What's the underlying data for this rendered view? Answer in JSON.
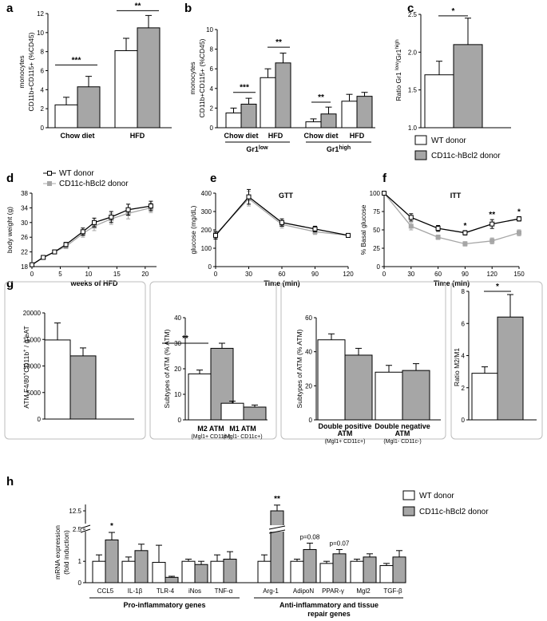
{
  "panel_labels": [
    "a",
    "b",
    "c",
    "d",
    "e",
    "f",
    "g",
    "h"
  ],
  "colors": {
    "wt": "#ffffff",
    "tg": "#a6a6a6",
    "tg_line": "#a6a6a6",
    "wt_line": "#000000",
    "edge": "#000000"
  },
  "legend": {
    "wt": "WT donor",
    "tg": "CD11c-hBcl2 donor"
  },
  "chart_data": [
    {
      "id": "a",
      "type": "bar",
      "ylabel": "monocytes CD11b+CD115+ (%CD45)",
      "ylim": [
        0,
        12
      ],
      "yticks": [
        0,
        2,
        4,
        6,
        8,
        10,
        12
      ],
      "categories": [
        "Chow diet",
        "HFD"
      ],
      "series": [
        {
          "name": "WT donor",
          "values": [
            2.4,
            8.1
          ],
          "err": [
            0.8,
            1.3
          ]
        },
        {
          "name": "CD11c-hBcl2 donor",
          "values": [
            4.3,
            10.5
          ],
          "err": [
            1.1,
            1.3
          ]
        }
      ],
      "sig": [
        {
          "cat": 0,
          "label": "***"
        },
        {
          "cat": 1,
          "label": "**"
        }
      ]
    },
    {
      "id": "b",
      "type": "bar",
      "ylabel": "monocytes CD11b+CD115+ (%CD45)",
      "ylim": [
        0,
        10
      ],
      "yticks": [
        0,
        2,
        4,
        6,
        8,
        10
      ],
      "categories": [
        "Chow diet",
        "HFD",
        "Chow diet",
        "HFD"
      ],
      "groups": [
        "Gr1low",
        "Gr1high"
      ],
      "series": [
        {
          "name": "WT donor",
          "values": [
            1.5,
            5.1,
            0.6,
            2.7
          ],
          "err": [
            0.5,
            0.9,
            0.3,
            0.7
          ]
        },
        {
          "name": "CD11c-hBcl2 donor",
          "values": [
            2.4,
            6.6,
            1.4,
            3.2
          ],
          "err": [
            0.6,
            1.0,
            0.7,
            0.4
          ]
        }
      ],
      "sig": [
        {
          "cat": 0,
          "label": "***"
        },
        {
          "cat": 1,
          "label": "**"
        },
        {
          "cat": 2,
          "label": "**"
        }
      ]
    },
    {
      "id": "c",
      "type": "bar",
      "ylabel": "Ratio Gr1 low/Gr1 high",
      "ylim": [
        1.0,
        2.5
      ],
      "yticks": [
        "1.0",
        "1.5",
        "2.0",
        "2.5"
      ],
      "series": [
        {
          "name": "WT donor",
          "values": [
            1.7
          ],
          "err": [
            0.18
          ]
        },
        {
          "name": "CD11c-hBcl2 donor",
          "values": [
            2.1
          ],
          "err": [
            0.35
          ]
        }
      ],
      "sig": [
        {
          "label": "*"
        }
      ]
    },
    {
      "id": "d",
      "type": "line",
      "ylabel": "body weight (g)",
      "xlabel": "weeks of HFD",
      "ylim": [
        18,
        38
      ],
      "yticks": [
        18,
        22,
        26,
        30,
        34,
        38
      ],
      "xlim": [
        0,
        22
      ],
      "xticks": [
        0,
        5,
        10,
        15,
        20
      ],
      "x": [
        0,
        2,
        4,
        6,
        9,
        11,
        14,
        17,
        21
      ],
      "series": [
        {
          "name": "WT donor",
          "values": [
            18.5,
            20.5,
            22,
            24,
            27.5,
            30,
            31.5,
            33.5,
            34.5
          ],
          "err": [
            0.4,
            0.5,
            0.5,
            0.6,
            1.0,
            1.2,
            1.5,
            1.5,
            1.3
          ]
        },
        {
          "name": "CD11c-hBcl2 donor",
          "values": [
            18.5,
            20.5,
            22,
            23.5,
            27,
            29,
            31,
            32.5,
            34
          ],
          "err": [
            0.4,
            0.5,
            0.5,
            0.6,
            1.0,
            1.2,
            1.5,
            1.5,
            1.3
          ]
        }
      ]
    },
    {
      "id": "e",
      "type": "line",
      "title": "GTT",
      "ylabel": "glucose (mg/dL)",
      "xlabel": "Time (min)",
      "ylim": [
        0,
        400
      ],
      "yticks": [
        0,
        100,
        200,
        300,
        400
      ],
      "xlim": [
        0,
        120
      ],
      "xticks": [
        0,
        30,
        60,
        90,
        120
      ],
      "x": [
        0,
        30,
        60,
        90,
        120
      ],
      "series": [
        {
          "name": "WT donor",
          "values": [
            170,
            380,
            240,
            205,
            170
          ],
          "err": [
            20,
            40,
            20,
            15,
            10
          ]
        },
        {
          "name": "CD11c-hBcl2 donor",
          "values": [
            175,
            370,
            230,
            190,
            170
          ],
          "err": [
            20,
            40,
            20,
            15,
            10
          ]
        }
      ]
    },
    {
      "id": "f",
      "type": "line",
      "title": "ITT",
      "ylabel": "% Basal glucose",
      "xlabel": "Time (min)",
      "ylim": [
        0,
        100
      ],
      "yticks": [
        0,
        25,
        50,
        75,
        100
      ],
      "xlim": [
        0,
        150
      ],
      "xticks": [
        0,
        30,
        60,
        90,
        120,
        150
      ],
      "x": [
        0,
        30,
        60,
        90,
        120,
        150
      ],
      "series": [
        {
          "name": "WT donor",
          "values": [
            100,
            67,
            52,
            46,
            58,
            65
          ],
          "err": [
            0,
            5,
            4,
            3,
            6,
            3
          ]
        },
        {
          "name": "CD11c-hBcl2 donor",
          "values": [
            100,
            55,
            40,
            31,
            35,
            46
          ],
          "err": [
            0,
            5,
            3,
            3,
            4,
            4
          ]
        }
      ],
      "sig": [
        {
          "x": 90,
          "label": "*"
        },
        {
          "x": 120,
          "label": "**"
        },
        {
          "x": 150,
          "label": "*"
        }
      ]
    },
    {
      "id": "g1",
      "type": "bar",
      "ylabel": "ATM  F4/80+CD11b+ / g eAT",
      "ylim": [
        0,
        20000
      ],
      "yticks": [
        0,
        5000,
        10000,
        15000,
        20000
      ],
      "series": [
        {
          "name": "WT donor",
          "values": [
            14900
          ],
          "err": [
            3200
          ]
        },
        {
          "name": "CD11c-hBcl2 donor",
          "values": [
            11900
          ],
          "err": [
            1500
          ]
        }
      ]
    },
    {
      "id": "g2",
      "type": "bar",
      "ylabel": "Subtypes of ATM  (% ATM)",
      "ylim": [
        0,
        40
      ],
      "yticks": [
        0,
        10,
        20,
        30,
        40
      ],
      "categories": [
        "M2 ATM",
        "M1 ATM"
      ],
      "subcategories": [
        "(Mgl1+ CD11c-)",
        "(Mgl1- CD11c+)"
      ],
      "series": [
        {
          "name": "WT donor",
          "values": [
            18,
            6.5
          ],
          "err": [
            1.5,
            0.8
          ]
        },
        {
          "name": "CD11c-hBcl2 donor",
          "values": [
            28,
            5
          ],
          "err": [
            2,
            0.8
          ]
        }
      ],
      "sig": [
        {
          "cat": 0,
          "label": "**"
        }
      ]
    },
    {
      "id": "g3",
      "type": "bar",
      "ylabel": "Subtypes of ATM  (% ATM)",
      "ylim": [
        0,
        60
      ],
      "yticks": [
        0,
        20,
        40,
        60
      ],
      "categories": [
        "Double positive ATM",
        "Double negative ATM"
      ],
      "subcategories": [
        "(Mgl1+ CD11c+)",
        "(Mgl1- CD11c-)"
      ],
      "series": [
        {
          "name": "WT donor",
          "values": [
            47,
            28
          ],
          "err": [
            3.5,
            4
          ]
        },
        {
          "name": "CD11c-hBcl2 donor",
          "values": [
            38,
            29
          ],
          "err": [
            4,
            4
          ]
        }
      ]
    },
    {
      "id": "g4",
      "type": "bar",
      "ylabel": "Ratio M2/M1",
      "ylim": [
        0,
        8
      ],
      "yticks": [
        0,
        2,
        4,
        6,
        8
      ],
      "series": [
        {
          "name": "WT donor",
          "values": [
            2.9
          ],
          "err": [
            0.4
          ]
        },
        {
          "name": "CD11c-hBcl2 donor",
          "values": [
            6.4
          ],
          "err": [
            1.4
          ]
        }
      ],
      "sig": [
        {
          "label": "*"
        }
      ]
    },
    {
      "id": "h",
      "type": "bar",
      "ylabel": "mRNA expression (fold induction)",
      "yticks": [
        "0",
        "1",
        "2.5",
        "12.5"
      ],
      "categories": [
        "CCL5",
        "IL-1β",
        "TLR-4",
        "iNos",
        "TNF-α",
        "Arg-1",
        "AdipoN",
        "PPAR-γ",
        "Mgl2",
        "TGF-β"
      ],
      "series": [
        {
          "name": "WT donor",
          "values": [
            1.0,
            1.0,
            0.95,
            1.0,
            1.0,
            1.0,
            1.0,
            0.9,
            1.0,
            0.8
          ],
          "err": [
            0.3,
            0.2,
            0.8,
            0.1,
            0.3,
            0.3,
            0.1,
            0.1,
            0.1,
            0.1
          ]
        },
        {
          "name": "CD11c-hBcl2 donor",
          "values": [
            2.0,
            1.5,
            0.25,
            0.85,
            1.1,
            12.5,
            1.55,
            1.35,
            1.2,
            1.2
          ],
          "err": [
            0.35,
            0.3,
            0.05,
            0.15,
            0.35,
            1.2,
            0.3,
            0.2,
            0.15,
            0.3
          ]
        }
      ],
      "sig": [
        {
          "cat": 0,
          "label": "*"
        },
        {
          "cat": 5,
          "label": "**"
        },
        {
          "cat": 6,
          "label": "p=0.08"
        },
        {
          "cat": 7,
          "label": "p=0.07"
        }
      ],
      "groups": [
        "Pro-inflammatory genes",
        "Anti-inflammatory and tissue repair genes"
      ]
    }
  ]
}
